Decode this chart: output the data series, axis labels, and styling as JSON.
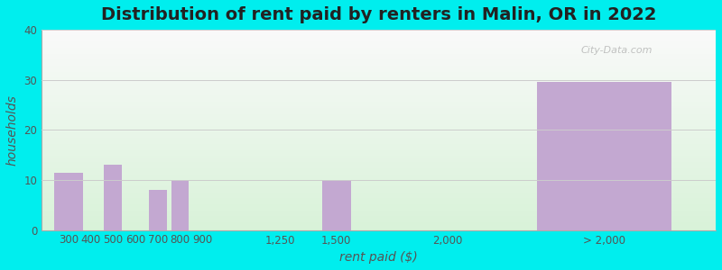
{
  "title": "Distribution of rent paid by renters in Malin, OR in 2022",
  "xlabel": "rent paid ($)",
  "ylabel": "households",
  "bar_color": "#C3A8D1",
  "background_outer": "#00EEEE",
  "ylim": [
    0,
    40
  ],
  "yticks": [
    0,
    10,
    20,
    30,
    40
  ],
  "tick_labels": [
    "300",
    "400",
    "500",
    "600",
    "700",
    "800",
    "900",
    "1,250",
    "1,500",
    "2,000",
    "> 2,000"
  ],
  "tick_positions": [
    300,
    400,
    500,
    600,
    700,
    800,
    900,
    1250,
    1500,
    2000,
    2700
  ],
  "bar_centers": [
    300,
    500,
    700,
    800,
    1500,
    2700
  ],
  "bar_values": [
    11.5,
    13,
    8,
    10,
    10,
    29.5
  ],
  "bar_widths": [
    130,
    80,
    80,
    80,
    130,
    600
  ],
  "xlim": [
    180,
    3200
  ],
  "title_fontsize": 14,
  "label_fontsize": 10,
  "tick_fontsize": 8.5,
  "watermark": "City-Data.com",
  "grad_top": "#FAFAFA",
  "grad_bottom": "#DAEEDA"
}
